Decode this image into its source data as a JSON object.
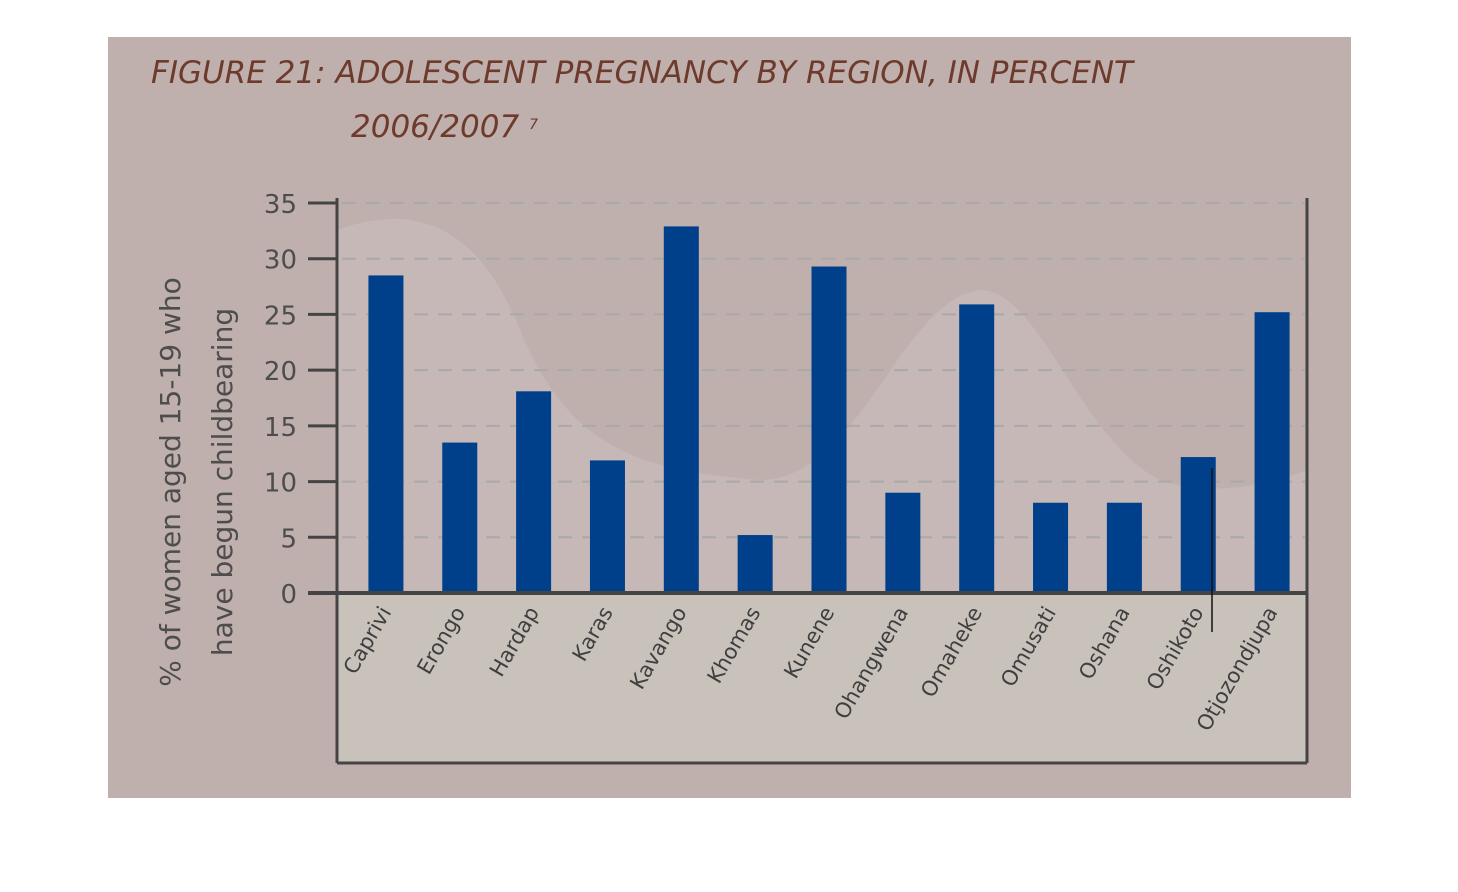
{
  "figure": {
    "title": "FIGURE 21: ADOLESCENT PREGNANCY BY REGION, IN PERCENT",
    "subtitle": "2006/2007",
    "footnote": "7"
  },
  "chart_data": {
    "type": "bar",
    "title": "FIGURE 21: ADOLESCENT PREGNANCY BY REGION, IN PERCENT",
    "subtitle": "2006/2007",
    "categories": [
      "Caprivi",
      "Erongo",
      "Hardap",
      "Karas",
      "Kavango",
      "Khomas",
      "Kunene",
      "Ohangwena",
      "Omaheke",
      "Omusati",
      "Oshana",
      "Oshikoto",
      "Otjozondjupa"
    ],
    "values": [
      28.5,
      13.5,
      18.1,
      11.9,
      32.9,
      5.2,
      29.3,
      9.0,
      25.9,
      8.1,
      8.1,
      12.2,
      25.2
    ],
    "ylabel_lines": [
      "% of women aged 15-19 who",
      "have begun childbearing"
    ],
    "ylim": [
      0,
      35
    ],
    "yticks": [
      0,
      5,
      10,
      15,
      20,
      25,
      30,
      35
    ],
    "grid": "horizontal dashed",
    "colors": {
      "bar": "#003f8a",
      "panel": "#bfb0ad",
      "category_panel": "#c8c2bb",
      "title": "#6e3a2c"
    }
  }
}
